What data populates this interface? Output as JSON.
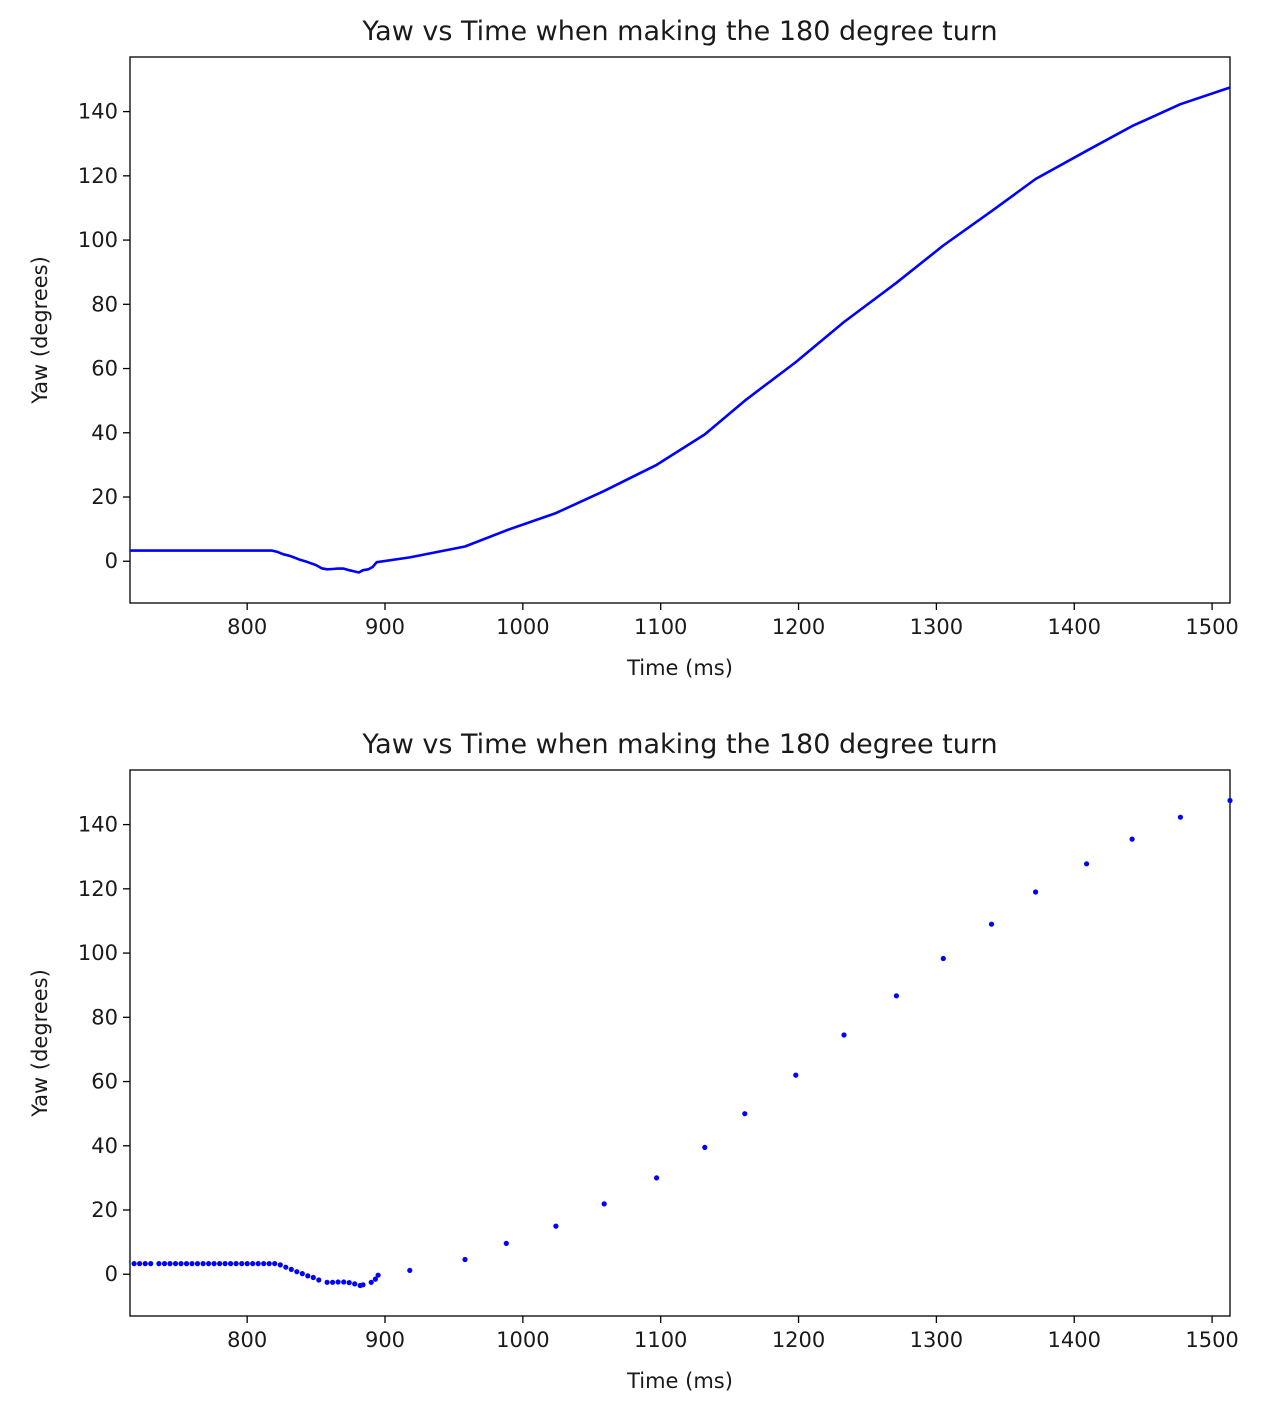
{
  "chart_data": [
    {
      "type": "line",
      "title": "Yaw vs Time when making the 180 degree turn",
      "xlabel": "Time (ms)",
      "ylabel": "Yaw (degrees)",
      "xlim": [
        715,
        1513
      ],
      "ylim": [
        -13,
        157
      ],
      "xticks": [
        "800",
        "900",
        "1000",
        "1100",
        "1200",
        "1300",
        "1400",
        "1500"
      ],
      "yticks": [
        "0",
        "20",
        "40",
        "60",
        "80",
        "100",
        "120",
        "140"
      ],
      "line_color": "#0000ff",
      "grid": false,
      "series": [
        {
          "x": [
            715,
            740,
            760,
            780,
            800,
            818,
            822,
            826,
            830,
            834,
            838,
            842,
            846,
            850,
            854,
            858,
            862,
            866,
            870,
            874,
            878,
            881,
            884,
            888,
            891,
            894,
            918,
            958,
            988,
            1024,
            1059,
            1097,
            1132,
            1161,
            1198,
            1233,
            1271,
            1305,
            1340,
            1372,
            1409,
            1442,
            1477,
            1513
          ],
          "y": [
            3.3,
            3.3,
            3.3,
            3.3,
            3.3,
            3.3,
            2.9,
            2.2,
            1.8,
            1.2,
            0.5,
            0,
            -0.6,
            -1.2,
            -2.2,
            -2.5,
            -2.4,
            -2.3,
            -2.3,
            -2.8,
            -3.2,
            -3.5,
            -2.8,
            -2.5,
            -1.8,
            -0.3,
            1.2,
            4.6,
            9.6,
            15,
            21.9,
            30,
            39.5,
            50,
            62,
            74.5,
            86.7,
            98.3,
            109,
            119,
            127.8,
            135.5,
            142.3,
            147.5
          ]
        }
      ]
    },
    {
      "type": "scatter",
      "title": "Yaw vs Time when making the 180 degree turn",
      "xlabel": "Time (ms)",
      "ylabel": "Yaw (degrees)",
      "xlim": [
        715,
        1513
      ],
      "ylim": [
        -13,
        157
      ],
      "xticks": [
        "800",
        "900",
        "1000",
        "1100",
        "1200",
        "1300",
        "1400",
        "1500"
      ],
      "yticks": [
        "0",
        "20",
        "40",
        "60",
        "80",
        "100",
        "120",
        "140"
      ],
      "marker_color": "#0000ff",
      "grid": false,
      "series": [
        {
          "x": [
            718,
            722,
            726,
            730,
            736,
            740,
            744,
            748,
            752,
            756,
            760,
            764,
            768,
            772,
            776,
            780,
            784,
            788,
            792,
            796,
            800,
            804,
            808,
            812,
            816,
            820,
            824,
            828,
            832,
            836,
            840,
            844,
            848,
            852,
            858,
            862,
            866,
            870,
            874,
            878,
            882,
            884,
            890,
            893,
            895,
            918,
            958,
            988,
            1024,
            1059,
            1097,
            1132,
            1161,
            1198,
            1233,
            1271,
            1305,
            1340,
            1372,
            1409,
            1442,
            1477,
            1513
          ],
          "y": [
            3.3,
            3.3,
            3.3,
            3.3,
            3.3,
            3.3,
            3.3,
            3.3,
            3.3,
            3.3,
            3.3,
            3.3,
            3.3,
            3.3,
            3.3,
            3.3,
            3.3,
            3.3,
            3.3,
            3.3,
            3.3,
            3.3,
            3.3,
            3.3,
            3.3,
            3.3,
            2.9,
            2.2,
            1.5,
            0.8,
            0.2,
            -0.5,
            -1.0,
            -1.8,
            -2.5,
            -2.5,
            -2.4,
            -2.4,
            -2.6,
            -3.0,
            -3.5,
            -3.3,
            -2.5,
            -1.5,
            -0.3,
            1.2,
            4.6,
            9.6,
            15,
            21.9,
            30,
            39.5,
            50,
            62,
            74.5,
            86.7,
            98.3,
            109,
            119,
            127.8,
            135.5,
            142.3,
            147.5
          ]
        }
      ]
    }
  ]
}
